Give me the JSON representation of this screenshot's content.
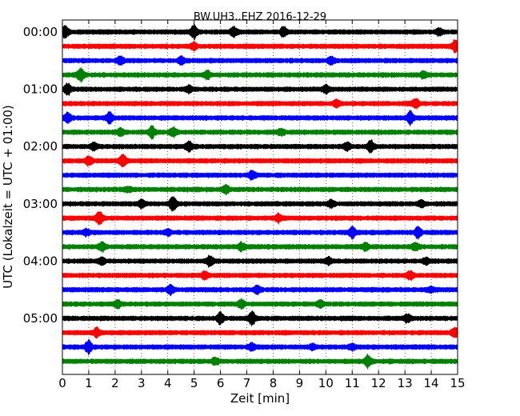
{
  "chart_data": {
    "type": "line",
    "title": "BW.UH3..EHZ 2016-12-29",
    "xlabel": "Zeit  [min]",
    "ylabel": "UTC (Lokalzeit = UTC + 01:00)",
    "xlim": [
      0,
      15
    ],
    "x_ticks": [
      0,
      1,
      2,
      3,
      4,
      5,
      6,
      7,
      8,
      9,
      10,
      11,
      12,
      13,
      14,
      15
    ],
    "x_tick_labels": [
      "0",
      "1",
      "2",
      "3",
      "4",
      "5",
      "6",
      "7",
      "8",
      "9",
      "10",
      "11",
      "12",
      "13",
      "14",
      "15"
    ],
    "y_tick_labels": [
      "00:00",
      "01:00",
      "02:00",
      "03:00",
      "04:00",
      "05:00"
    ],
    "row_minutes": 15,
    "grid": "x-dotted",
    "trace_colors": [
      "#000000",
      "#ff0000",
      "#0000ff",
      "#008000"
    ],
    "rows": [
      {
        "start": "00:00",
        "bursts": [
          [
            0.1,
            0.9
          ],
          [
            5.0,
            1.0
          ],
          [
            6.5,
            0.7
          ],
          [
            8.4,
            0.8
          ],
          [
            14.3,
            0.5
          ]
        ]
      },
      {
        "start": "00:15",
        "bursts": [
          [
            5.0,
            0.5
          ],
          [
            14.9,
            1.0
          ]
        ]
      },
      {
        "start": "00:30",
        "bursts": [
          [
            2.2,
            0.6
          ],
          [
            4.5,
            0.5
          ],
          [
            10.2,
            0.5
          ]
        ]
      },
      {
        "start": "00:45",
        "bursts": [
          [
            0.7,
            1.0
          ],
          [
            5.5,
            0.5
          ],
          [
            13.7,
            0.4
          ]
        ]
      },
      {
        "start": "01:00",
        "bursts": [
          [
            0.2,
            0.8
          ],
          [
            4.8,
            0.5
          ],
          [
            10.0,
            0.6
          ]
        ]
      },
      {
        "start": "01:15",
        "bursts": [
          [
            10.4,
            0.5
          ],
          [
            13.4,
            0.7
          ]
        ]
      },
      {
        "start": "01:30",
        "bursts": [
          [
            0.2,
            0.8
          ],
          [
            1.8,
            0.8
          ],
          [
            13.2,
            1.0
          ]
        ]
      },
      {
        "start": "01:45",
        "bursts": [
          [
            2.2,
            0.6
          ],
          [
            3.4,
            0.9
          ],
          [
            4.2,
            0.7
          ],
          [
            8.3,
            0.4
          ]
        ]
      },
      {
        "start": "02:00",
        "bursts": [
          [
            1.2,
            0.6
          ],
          [
            4.8,
            0.7
          ],
          [
            10.8,
            0.6
          ],
          [
            11.7,
            0.9
          ]
        ]
      },
      {
        "start": "02:15",
        "bursts": [
          [
            1.0,
            0.6
          ],
          [
            2.3,
            1.0
          ]
        ]
      },
      {
        "start": "02:30",
        "bursts": [
          [
            7.2,
            0.6
          ]
        ]
      },
      {
        "start": "02:45",
        "bursts": [
          [
            2.5,
            0.3
          ],
          [
            6.2,
            0.6
          ]
        ]
      },
      {
        "start": "03:00",
        "bursts": [
          [
            4.2,
            1.0
          ],
          [
            3.0,
            0.6
          ],
          [
            10.2,
            0.5
          ],
          [
            13.6,
            0.5
          ]
        ]
      },
      {
        "start": "03:15",
        "bursts": [
          [
            1.4,
            1.0
          ],
          [
            8.2,
            0.6
          ]
        ]
      },
      {
        "start": "03:30",
        "bursts": [
          [
            0.9,
            0.4
          ],
          [
            4.0,
            0.4
          ],
          [
            11.0,
            0.8
          ],
          [
            13.5,
            0.8
          ]
        ]
      },
      {
        "start": "03:45",
        "bursts": [
          [
            1.5,
            0.7
          ],
          [
            6.8,
            0.6
          ],
          [
            11.5,
            0.5
          ],
          [
            13.4,
            0.6
          ]
        ]
      },
      {
        "start": "04:00",
        "bursts": [
          [
            1.5,
            0.5
          ],
          [
            5.6,
            0.8
          ],
          [
            10.1,
            0.5
          ],
          [
            13.8,
            0.4
          ]
        ]
      },
      {
        "start": "04:15",
        "bursts": [
          [
            5.4,
            0.5
          ],
          [
            13.2,
            0.6
          ]
        ]
      },
      {
        "start": "04:30",
        "bursts": [
          [
            4.1,
            0.7
          ],
          [
            7.4,
            0.6
          ],
          [
            14.0,
            0.4
          ]
        ]
      },
      {
        "start": "04:45",
        "bursts": [
          [
            2.1,
            0.5
          ],
          [
            6.8,
            0.7
          ],
          [
            9.8,
            0.5
          ]
        ]
      },
      {
        "start": "05:00",
        "bursts": [
          [
            6.0,
            0.9
          ],
          [
            7.2,
            1.0
          ],
          [
            13.1,
            0.6
          ]
        ]
      },
      {
        "start": "05:15",
        "bursts": [
          [
            1.3,
            0.7
          ],
          [
            14.9,
            0.8
          ]
        ]
      },
      {
        "start": "05:30",
        "bursts": [
          [
            1.0,
            1.0
          ],
          [
            7.2,
            0.5
          ],
          [
            9.5,
            0.4
          ],
          [
            11.0,
            0.4
          ]
        ]
      },
      {
        "start": "05:45",
        "bursts": [
          [
            5.8,
            0.5
          ],
          [
            11.6,
            0.9
          ]
        ]
      }
    ]
  }
}
